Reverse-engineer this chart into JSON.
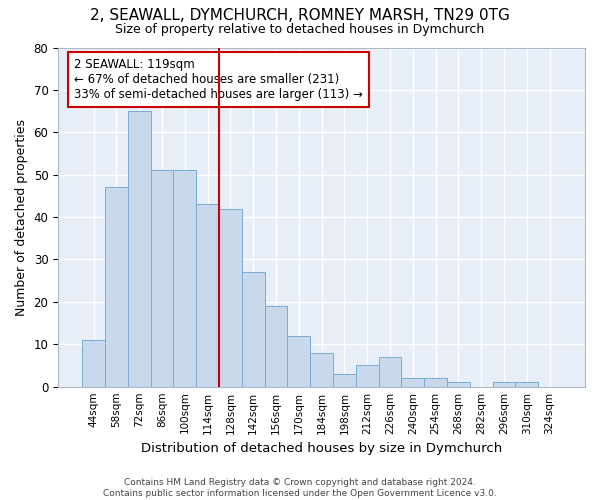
{
  "title": "2, SEAWALL, DYMCHURCH, ROMNEY MARSH, TN29 0TG",
  "subtitle": "Size of property relative to detached houses in Dymchurch",
  "xlabel": "Distribution of detached houses by size in Dymchurch",
  "ylabel": "Number of detached properties",
  "bar_color": "#c8d9ee",
  "bar_edge_color": "#7aadd4",
  "background_color": "#e8eef8",
  "grid_color": "#ffffff",
  "fig_background": "#ffffff",
  "categories": [
    "44sqm",
    "58sqm",
    "72sqm",
    "86sqm",
    "100sqm",
    "114sqm",
    "128sqm",
    "142sqm",
    "156sqm",
    "170sqm",
    "184sqm",
    "198sqm",
    "212sqm",
    "226sqm",
    "240sqm",
    "254sqm",
    "268sqm",
    "282sqm",
    "296sqm",
    "310sqm",
    "324sqm"
  ],
  "values": [
    11,
    47,
    65,
    51,
    51,
    43,
    42,
    27,
    19,
    12,
    8,
    3,
    5,
    7,
    2,
    2,
    1,
    0,
    1,
    1,
    0
  ],
  "vline_x": 5.5,
  "vline_color": "#cc0000",
  "annotation_line1": "2 SEAWALL: 119sqm",
  "annotation_line2": "← 67% of detached houses are smaller (231)",
  "annotation_line3": "33% of semi-detached houses are larger (113) →",
  "annotation_box_color": "#ffffff",
  "annotation_box_edge_color": "#cc0000",
  "footer_text": "Contains HM Land Registry data © Crown copyright and database right 2024.\nContains public sector information licensed under the Open Government Licence v3.0.",
  "ylim": [
    0,
    80
  ],
  "yticks": [
    0,
    10,
    20,
    30,
    40,
    50,
    60,
    70,
    80
  ]
}
